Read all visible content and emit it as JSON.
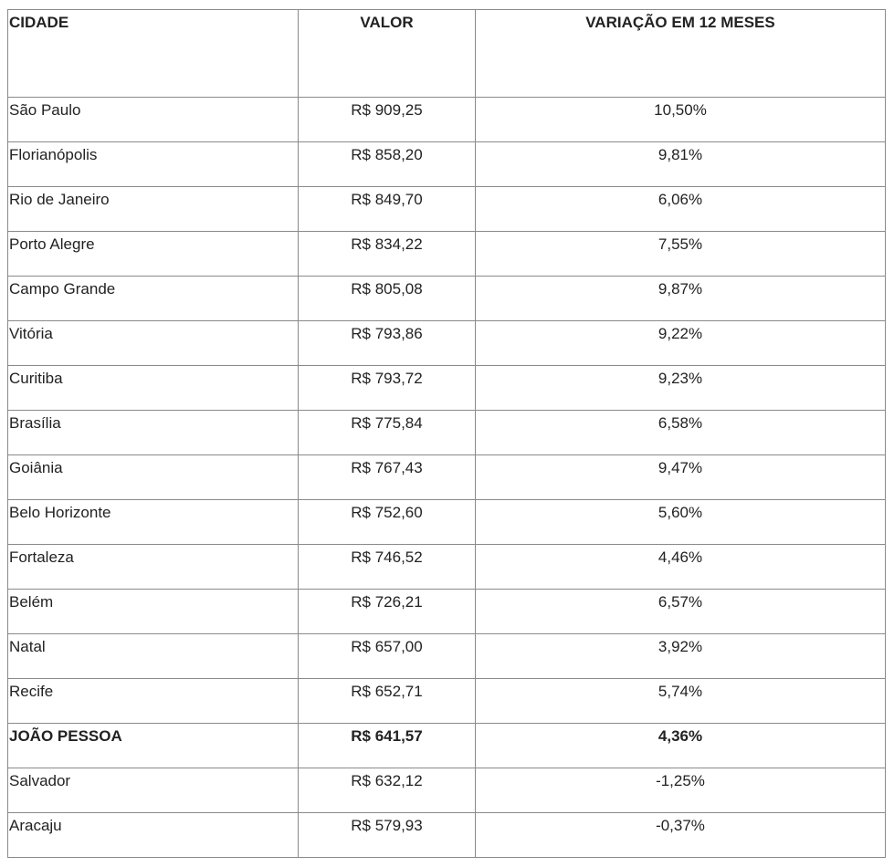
{
  "table": {
    "headers": [
      "CIDADE",
      "VALOR",
      "VARIAÇÃO EM 12 MESES"
    ],
    "rows": [
      {
        "cidade": "São Paulo",
        "valor": "R$ 909,25",
        "variacao": "10,50%",
        "bold": false
      },
      {
        "cidade": "Florianópolis",
        "valor": "R$ 858,20",
        "variacao": "9,81%",
        "bold": false
      },
      {
        "cidade": "Rio de Janeiro",
        "valor": "R$ 849,70",
        "variacao": "6,06%",
        "bold": false
      },
      {
        "cidade": "Porto Alegre",
        "valor": "R$ 834,22",
        "variacao": "7,55%",
        "bold": false
      },
      {
        "cidade": "Campo Grande",
        "valor": "R$ 805,08",
        "variacao": "9,87%",
        "bold": false
      },
      {
        "cidade": "Vitória",
        "valor": "R$ 793,86",
        "variacao": "9,22%",
        "bold": false
      },
      {
        "cidade": "Curitiba",
        "valor": "R$ 793,72",
        "variacao": "9,23%",
        "bold": false
      },
      {
        "cidade": "Brasília",
        "valor": "R$ 775,84",
        "variacao": "6,58%",
        "bold": false
      },
      {
        "cidade": "Goiânia",
        "valor": "R$ 767,43",
        "variacao": "9,47%",
        "bold": false
      },
      {
        "cidade": "Belo Horizonte",
        "valor": "R$ 752,60",
        "variacao": "5,60%",
        "bold": false
      },
      {
        "cidade": "Fortaleza",
        "valor": "R$ 746,52",
        "variacao": "4,46%",
        "bold": false
      },
      {
        "cidade": "Belém",
        "valor": "R$ 726,21",
        "variacao": "6,57%",
        "bold": false
      },
      {
        "cidade": "Natal",
        "valor": "R$ 657,00",
        "variacao": "3,92%",
        "bold": false
      },
      {
        "cidade": "Recife",
        "valor": "R$ 652,71",
        "variacao": "5,74%",
        "bold": false
      },
      {
        "cidade": "JOÃO PESSOA",
        "valor": "R$ 641,57",
        "variacao": "4,36%",
        "bold": true
      },
      {
        "cidade": "Salvador",
        "valor": "R$ 632,12",
        "variacao": "-1,25%",
        "bold": false
      },
      {
        "cidade": "Aracaju",
        "valor": "R$ 579,93",
        "variacao": "-0,37%",
        "bold": false
      }
    ]
  }
}
